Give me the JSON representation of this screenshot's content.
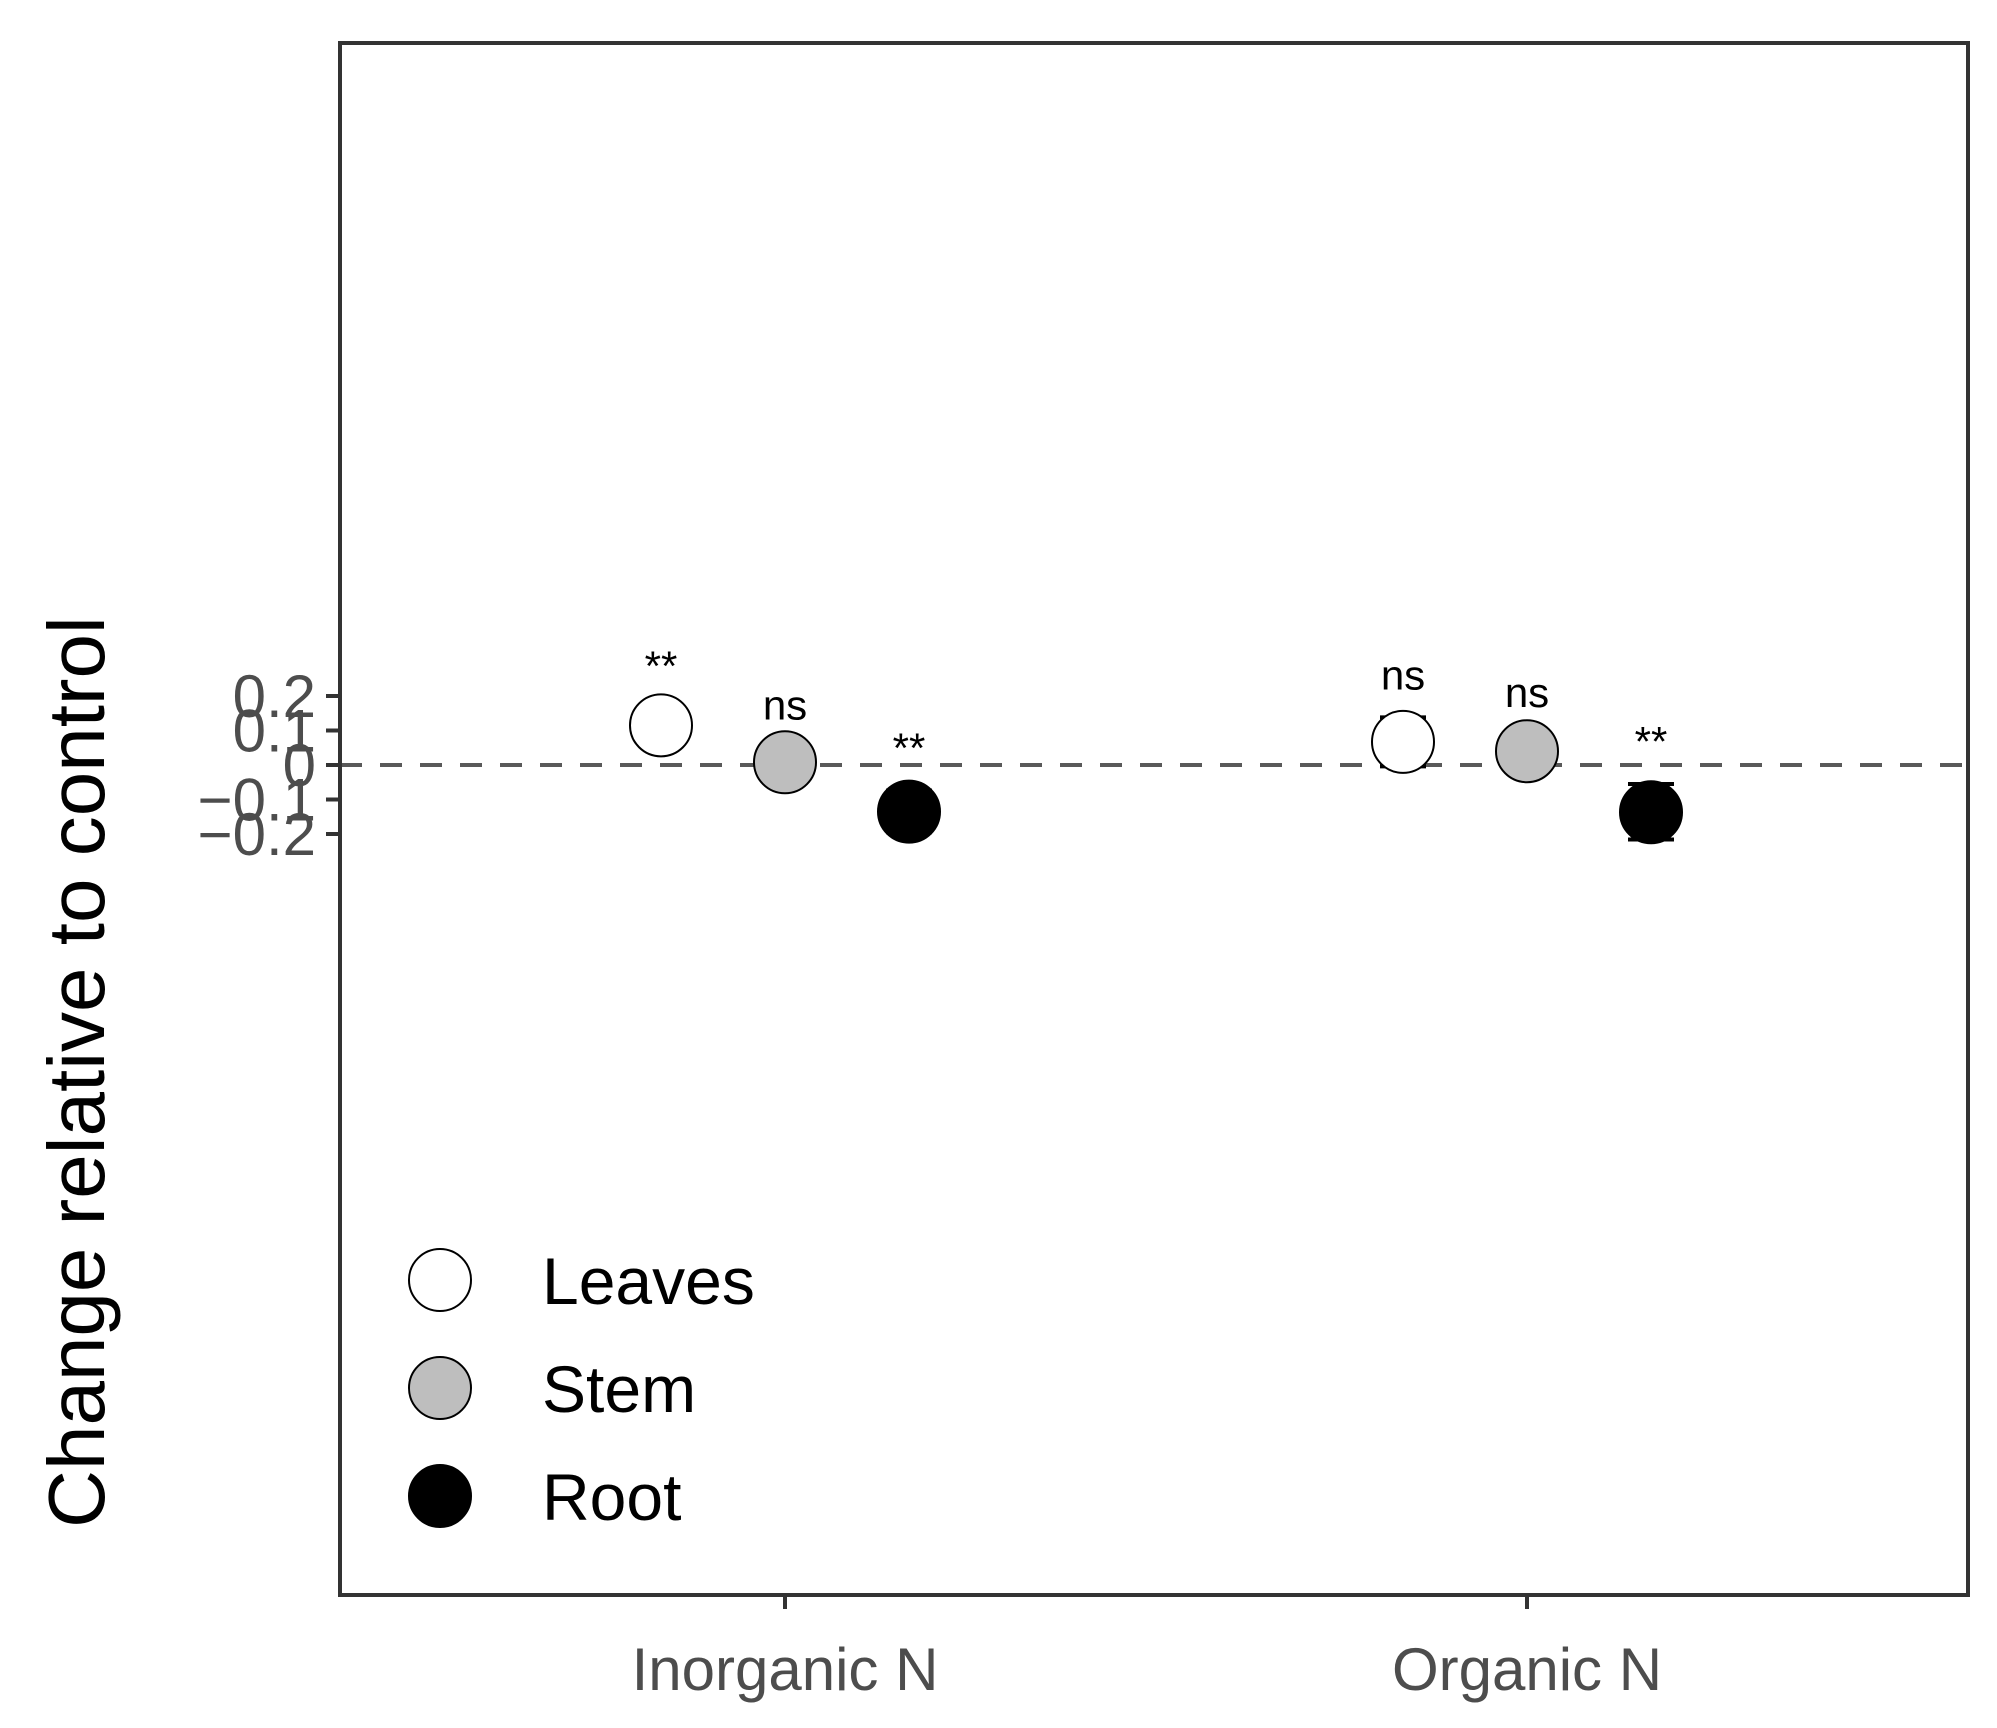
{
  "chart_data": {
    "type": "scatter",
    "title": "",
    "xlabel": "",
    "ylabel": "Change relative to control",
    "categories": [
      "Inorganic N",
      "Organic N"
    ],
    "ylim": [
      -0.24,
      0.21
    ],
    "yticks": [
      0.2,
      0.1,
      0,
      -0.1,
      -0.2
    ],
    "ytick_labels": [
      "0.2",
      "0.1",
      "0",
      "−0.1",
      "−0.2"
    ],
    "reference_line": 0,
    "grid": false,
    "legend_position": "bottom-left",
    "series": [
      {
        "name": "Leaves",
        "color": "#ffffff",
        "values": [
          0.115,
          0.067
        ],
        "ci_low": [
          0.068,
          -0.004
        ],
        "ci_high": [
          0.164,
          0.138
        ],
        "significance": [
          "**",
          "ns"
        ]
      },
      {
        "name": "Stem",
        "color": "#bebebe",
        "values": [
          0.008,
          0.04
        ],
        "ci_low": [
          -0.035,
          -0.006
        ],
        "ci_high": [
          0.051,
          0.087
        ],
        "significance": [
          "ns",
          "ns"
        ]
      },
      {
        "name": "Root",
        "color": "#000000",
        "values": [
          -0.135,
          -0.137
        ],
        "ci_low": [
          -0.195,
          -0.216
        ],
        "ci_high": [
          -0.074,
          -0.055
        ],
        "significance": [
          "**",
          "**"
        ]
      }
    ]
  }
}
